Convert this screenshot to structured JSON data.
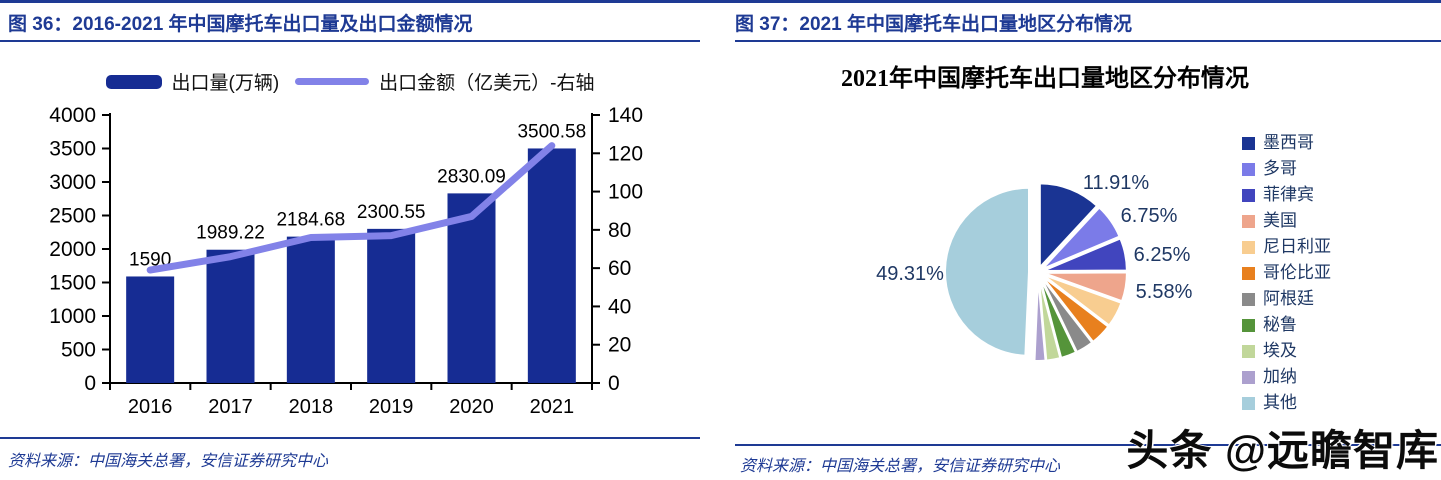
{
  "theme": {
    "accent": "#1E3A94",
    "bar_color": "#162C93",
    "line_color": "#8282E8",
    "pie_label_color": "#1F3864",
    "axis_color": "#000000"
  },
  "page": {
    "watermark": "头条 @远瞻智库"
  },
  "panels": {
    "left": {
      "figure_label": "图 36：2016-2021 年中国摩托车出口量及出口金额情况",
      "source": "资料来源：中国海关总署，安信证券研究中心"
    },
    "right": {
      "figure_label": "图 37：2021 年中国摩托车出口量地区分布情况",
      "source": "资料来源：中国海关总署，安信证券研究中心"
    }
  },
  "chart_data": [
    {
      "type": "bar",
      "subtype": "bar+line-dual-axis",
      "categories": [
        "2016",
        "2017",
        "2018",
        "2019",
        "2020",
        "2021"
      ],
      "series": [
        {
          "name": "出口量(万辆)",
          "kind": "bar",
          "axis": "left",
          "color": "#162C93",
          "values": [
            1590,
            1989.22,
            2184.68,
            2300.55,
            2830.09,
            3500.58
          ],
          "labels": [
            "1590",
            "1989.22",
            "2184.68",
            "2300.55",
            "2830.09",
            "3500.58"
          ]
        },
        {
          "name": "出口金额（亿美元）-右轴",
          "kind": "line",
          "axis": "right",
          "color": "#8282E8",
          "values": [
            59,
            66,
            76,
            77,
            87,
            124
          ]
        }
      ],
      "left_axis": {
        "min": 0,
        "max": 4000,
        "step": 500
      },
      "right_axis": {
        "min": 0,
        "max": 140,
        "step": 20
      },
      "legend_position": "top",
      "grid": false
    },
    {
      "type": "pie",
      "title": "2021年中国摩托车出口量地区分布情况",
      "start_angle_deg": -90,
      "direction": "clockwise",
      "legend_position": "right",
      "slices": [
        {
          "name": "墨西哥",
          "value": 11.91,
          "label": "11.91%",
          "color": "#1A3493"
        },
        {
          "name": "多哥",
          "value": 6.75,
          "label": "6.75%",
          "color": "#7B7BE8"
        },
        {
          "name": "菲律宾",
          "value": 6.25,
          "label": "6.25%",
          "color": "#4145BE"
        },
        {
          "name": "美国",
          "value": 5.58,
          "label": "5.58%",
          "color": "#EEA58C"
        },
        {
          "name": "尼日利亚",
          "value": 4.9,
          "label": "",
          "color": "#F8CD90"
        },
        {
          "name": "哥伦比亚",
          "value": 4.1,
          "label": "",
          "color": "#E8801E"
        },
        {
          "name": "阿根廷",
          "value": 3.4,
          "label": "",
          "color": "#8A8A8A"
        },
        {
          "name": "秘鲁",
          "value": 3.0,
          "label": "",
          "color": "#55943A"
        },
        {
          "name": "埃及",
          "value": 2.7,
          "label": "",
          "color": "#C1D79A"
        },
        {
          "name": "加纳",
          "value": 2.1,
          "label": "",
          "color": "#ACA0CE"
        },
        {
          "name": "其他",
          "value": 49.31,
          "label": "49.31%",
          "color": "#A6CEDC"
        }
      ]
    }
  ]
}
